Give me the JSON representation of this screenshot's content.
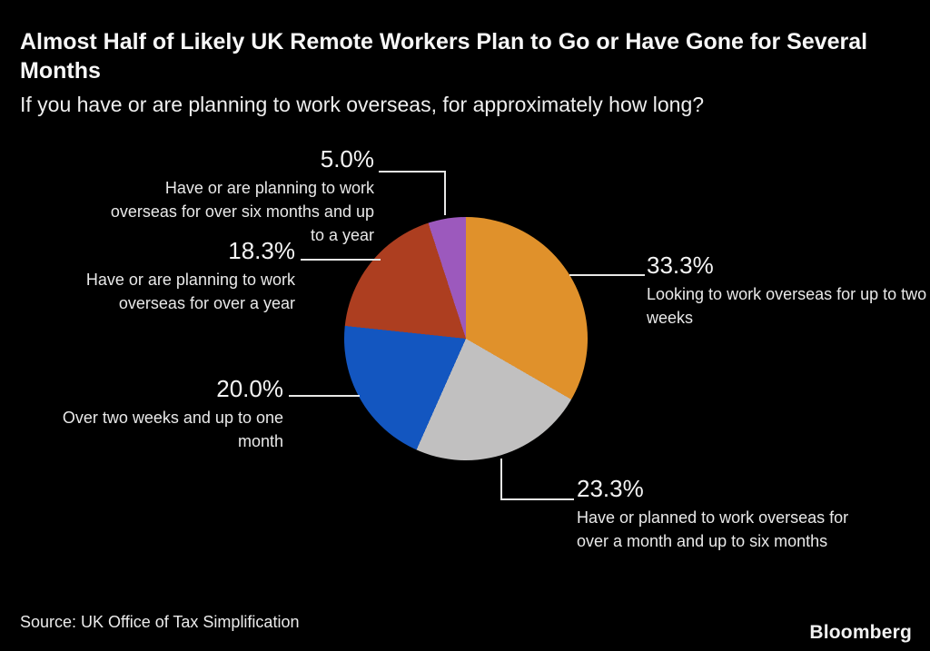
{
  "header": {
    "title": "Almost Half of Likely UK Remote Workers Plan to Go or Have Gone for Several Months",
    "subtitle": "If you have or are planning to work overseas, for approximately how long?"
  },
  "chart_data": {
    "type": "pie",
    "title": "Almost Half of Likely UK Remote Workers Plan to Go or Have Gone for Several Months",
    "subtitle": "If you have or are planning to work overseas, for approximately how long?",
    "start_angle_deg": 0,
    "direction": "clockwise",
    "background_color": "#000000",
    "slices": [
      {
        "label": "Looking to work overseas for up to two weeks",
        "value": 33.3,
        "pct_label": "33.3%",
        "color": "#E0912B"
      },
      {
        "label": "Have or planned to work overseas for over a month and up to six months",
        "value": 23.3,
        "pct_label": "23.3%",
        "color": "#C1C0C0"
      },
      {
        "label": "Over two weeks and up to one month",
        "value": 20.0,
        "pct_label": "20.0%",
        "color": "#1356C0"
      },
      {
        "label": "Have or are planning to work overseas for over a year",
        "value": 18.3,
        "pct_label": "18.3%",
        "color": "#AD3E20"
      },
      {
        "label": "Have or are planning to work overseas for over six months and up to a year",
        "value": 5.0,
        "pct_label": "5.0%",
        "color": "#9C59BD"
      }
    ]
  },
  "footer": {
    "source": "Source: UK Office of Tax Simplification",
    "brand": "Bloomberg"
  }
}
